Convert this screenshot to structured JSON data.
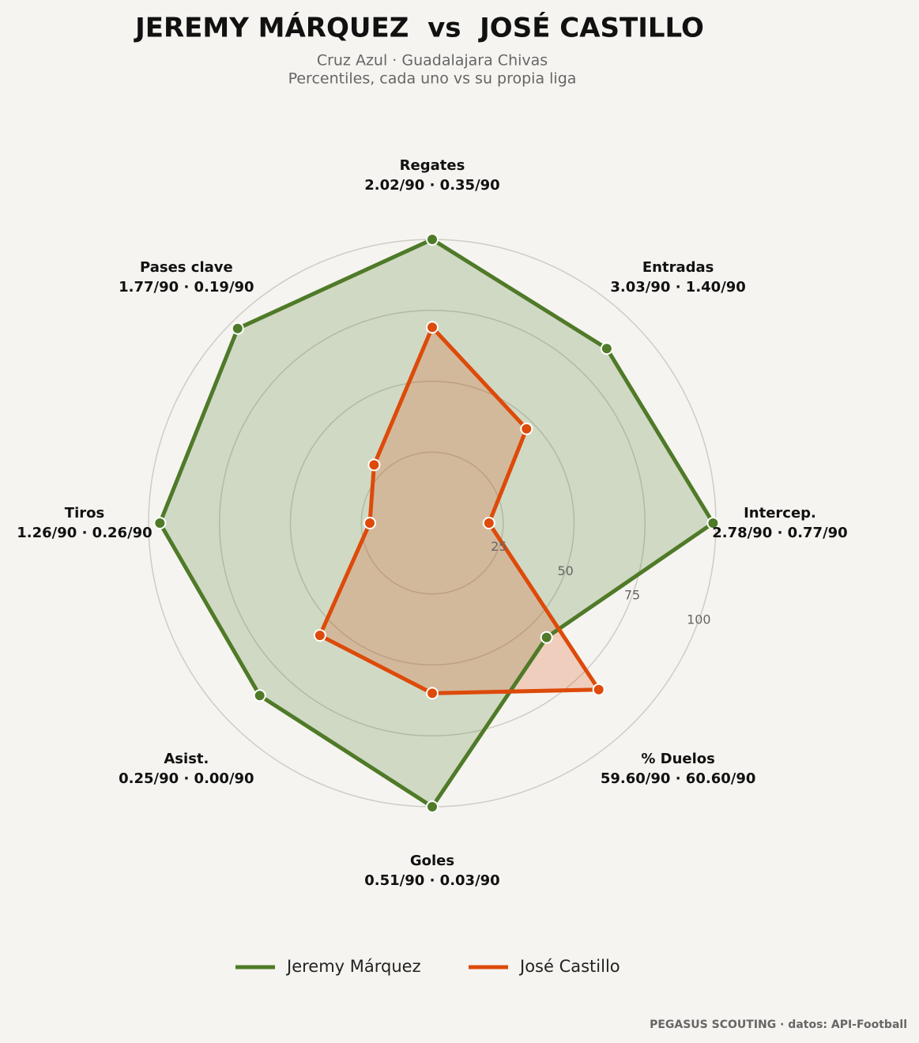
{
  "chart_data": {
    "type": "radar",
    "title": "JEREMY MÁRQUEZ  vs  JOSÉ CASTILLO",
    "subtitle": [
      "Cruz Azul · Guadalajara Chivas",
      "Percentiles, cada uno vs su propia liga"
    ],
    "categories": [
      "Regates",
      "Entradas",
      "Intercep.",
      "% Duelos",
      "Goles",
      "Asist.",
      "Tiros",
      "Pases clave"
    ],
    "category_details": [
      "2.02/90 · 0.35/90",
      "3.03/90 · 1.40/90",
      "2.78/90 · 0.77/90",
      "59.60/90 · 60.60/90",
      "0.51/90 · 0.03/90",
      "0.25/90 · 0.00/90",
      "1.26/90 · 0.26/90",
      "1.77/90 · 0.19/90"
    ],
    "series": [
      {
        "name": "Jeremy Márquez",
        "color": "#4f7a28",
        "values": [
          100,
          87,
          99,
          57,
          100,
          86,
          96,
          97
        ]
      },
      {
        "name": "José Castillo",
        "color": "#dd4a0a",
        "values": [
          69,
          47,
          20,
          83,
          60,
          56,
          22,
          29
        ]
      }
    ],
    "rlim": [
      0,
      100
    ],
    "rticks": [
      25,
      50,
      75,
      100
    ],
    "grid": true,
    "legend": "bottom",
    "footer": "PEGASUS SCOUTING · datos: API-Football"
  }
}
